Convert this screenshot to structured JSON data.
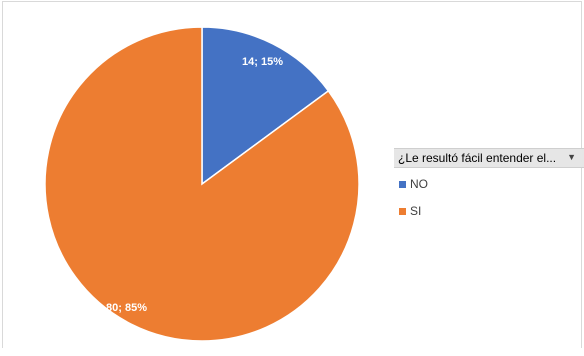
{
  "chart_data": {
    "type": "pie",
    "title": "",
    "categories": [
      "NO",
      "SI"
    ],
    "values": [
      14,
      80
    ],
    "percentages": [
      "15%",
      "85%"
    ],
    "data_labels": [
      "14; 15%",
      "80; 85%"
    ],
    "colors": [
      "#4472c4",
      "#ed7d31"
    ],
    "legend_placement": "right"
  },
  "legend": {
    "header": "¿Le resultó fácil entender el...",
    "dropdown_icon": "triangle-down-icon",
    "items": [
      {
        "label": "NO",
        "color": "#4472c4"
      },
      {
        "label": "SI",
        "color": "#ed7d31"
      }
    ]
  }
}
